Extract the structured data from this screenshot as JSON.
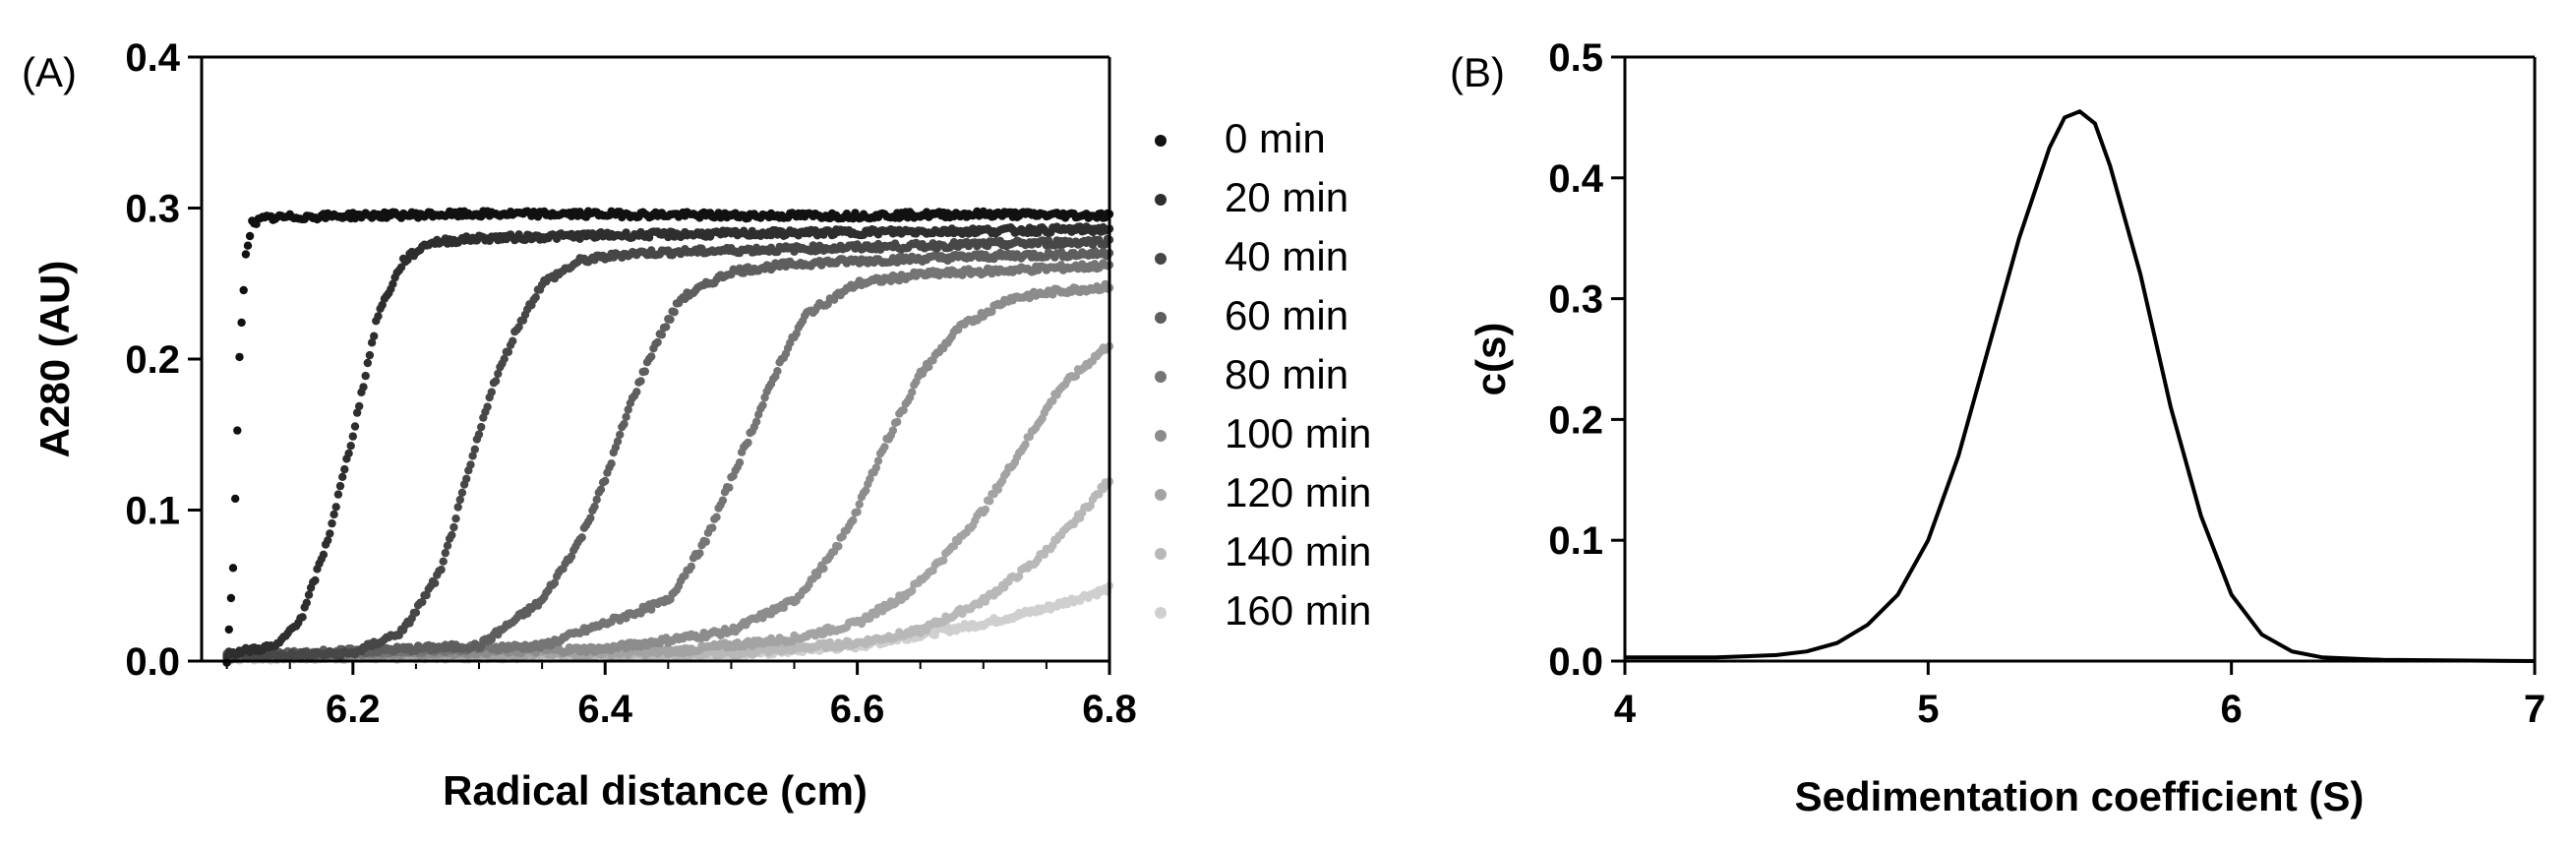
{
  "chart_data": [
    {
      "type": "scatter",
      "panel_label": "(A)",
      "xlabel": "Radical distance (cm)",
      "ylabel": "A280 (AU)",
      "xlim": [
        6.08,
        6.8
      ],
      "ylim": [
        0.0,
        0.4
      ],
      "x_ticks": [
        {
          "value": 6.2,
          "label": "6.2"
        },
        {
          "value": 6.4,
          "label": "6.4"
        },
        {
          "value": 6.6,
          "label": "6.6"
        },
        {
          "value": 6.8,
          "label": "6.8"
        }
      ],
      "y_ticks": [
        {
          "value": 0.0,
          "label": "0.0"
        },
        {
          "value": 0.1,
          "label": "0.1"
        },
        {
          "value": 0.2,
          "label": "0.2"
        },
        {
          "value": 0.3,
          "label": "0.3"
        },
        {
          "value": 0.4,
          "label": "0.4"
        }
      ],
      "legend_position": "right",
      "series": [
        {
          "name": "0 min",
          "color": "#111111",
          "x": [
            6.1,
            6.105,
            6.11,
            6.115,
            6.12,
            6.13,
            6.15,
            6.2,
            6.3,
            6.4,
            6.5,
            6.6,
            6.7,
            6.8
          ],
          "y": [
            0.0,
            0.06,
            0.2,
            0.27,
            0.29,
            0.293,
            0.294,
            0.295,
            0.296,
            0.296,
            0.295,
            0.295,
            0.296,
            0.295
          ]
        },
        {
          "name": "20 min",
          "color": "#2e2e2e",
          "x": [
            6.1,
            6.14,
            6.16,
            6.18,
            6.2,
            6.21,
            6.22,
            6.24,
            6.26,
            6.3,
            6.4,
            6.5,
            6.6,
            6.7,
            6.8
          ],
          "y": [
            0.005,
            0.01,
            0.03,
            0.08,
            0.15,
            0.19,
            0.23,
            0.265,
            0.277,
            0.28,
            0.282,
            0.283,
            0.284,
            0.285,
            0.286
          ]
        },
        {
          "name": "40 min",
          "color": "#474747",
          "x": [
            6.1,
            6.2,
            6.24,
            6.27,
            6.29,
            6.31,
            6.33,
            6.35,
            6.38,
            6.42,
            6.5,
            6.6,
            6.7,
            6.8
          ],
          "y": [
            0.003,
            0.005,
            0.02,
            0.06,
            0.12,
            0.18,
            0.22,
            0.25,
            0.265,
            0.27,
            0.272,
            0.274,
            0.276,
            0.278
          ]
        },
        {
          "name": "60 min",
          "color": "#5e5e5e",
          "x": [
            6.1,
            6.3,
            6.35,
            6.38,
            6.4,
            6.42,
            6.44,
            6.46,
            6.5,
            6.55,
            6.6,
            6.7,
            6.8
          ],
          "y": [
            0.003,
            0.01,
            0.04,
            0.08,
            0.12,
            0.17,
            0.21,
            0.24,
            0.258,
            0.263,
            0.265,
            0.268,
            0.27
          ]
        },
        {
          "name": "80 min",
          "color": "#757575",
          "x": [
            6.1,
            6.35,
            6.45,
            6.48,
            6.5,
            6.52,
            6.54,
            6.56,
            6.6,
            6.65,
            6.7,
            6.8
          ],
          "y": [
            0.003,
            0.01,
            0.04,
            0.08,
            0.12,
            0.16,
            0.2,
            0.23,
            0.25,
            0.256,
            0.258,
            0.262
          ]
        },
        {
          "name": "100 min",
          "color": "#8c8c8c",
          "x": [
            6.1,
            6.4,
            6.5,
            6.55,
            6.58,
            6.6,
            6.62,
            6.65,
            6.68,
            6.72,
            6.76,
            6.8
          ],
          "y": [
            0.003,
            0.008,
            0.02,
            0.04,
            0.07,
            0.1,
            0.14,
            0.19,
            0.22,
            0.24,
            0.245,
            0.248
          ]
        },
        {
          "name": "120 min",
          "color": "#a3a3a3",
          "x": [
            6.1,
            6.45,
            6.55,
            6.6,
            6.64,
            6.67,
            6.7,
            6.73,
            6.76,
            6.8
          ],
          "y": [
            0.003,
            0.006,
            0.015,
            0.025,
            0.045,
            0.07,
            0.1,
            0.14,
            0.18,
            0.21
          ]
        },
        {
          "name": "140 min",
          "color": "#b8b8b8",
          "x": [
            6.1,
            6.5,
            6.6,
            6.65,
            6.7,
            6.74,
            6.77,
            6.8
          ],
          "y": [
            0.003,
            0.005,
            0.012,
            0.02,
            0.04,
            0.065,
            0.09,
            0.12
          ]
        },
        {
          "name": "160 min",
          "color": "#cfcfcf",
          "x": [
            6.1,
            6.5,
            6.6,
            6.7,
            6.75,
            6.8
          ],
          "y": [
            0.002,
            0.004,
            0.01,
            0.025,
            0.035,
            0.048
          ]
        }
      ]
    },
    {
      "type": "line",
      "panel_label": "(B)",
      "xlabel": "Sedimentation coefficient (S)",
      "ylabel": "c(s)",
      "xlim": [
        4,
        7
      ],
      "ylim": [
        0.0,
        0.5
      ],
      "x_ticks": [
        {
          "value": 4,
          "label": "4"
        },
        {
          "value": 5,
          "label": "5"
        },
        {
          "value": 6,
          "label": "6"
        },
        {
          "value": 7,
          "label": "7"
        }
      ],
      "y_ticks": [
        {
          "value": 0.0,
          "label": "0.0"
        },
        {
          "value": 0.1,
          "label": "0.1"
        },
        {
          "value": 0.2,
          "label": "0.2"
        },
        {
          "value": 0.3,
          "label": "0.3"
        },
        {
          "value": 0.4,
          "label": "0.4"
        },
        {
          "value": 0.5,
          "label": "0.5"
        }
      ],
      "series": [
        {
          "color": "#000000",
          "x": [
            4.0,
            4.3,
            4.5,
            4.6,
            4.7,
            4.8,
            4.9,
            5.0,
            5.1,
            5.2,
            5.3,
            5.4,
            5.45,
            5.5,
            5.55,
            5.6,
            5.7,
            5.8,
            5.9,
            6.0,
            6.1,
            6.2,
            6.3,
            6.5,
            7.0
          ],
          "y": [
            0.003,
            0.003,
            0.005,
            0.008,
            0.015,
            0.03,
            0.055,
            0.1,
            0.17,
            0.26,
            0.35,
            0.425,
            0.45,
            0.455,
            0.445,
            0.41,
            0.32,
            0.21,
            0.12,
            0.055,
            0.022,
            0.008,
            0.003,
            0.001,
            0.0
          ]
        }
      ]
    }
  ]
}
